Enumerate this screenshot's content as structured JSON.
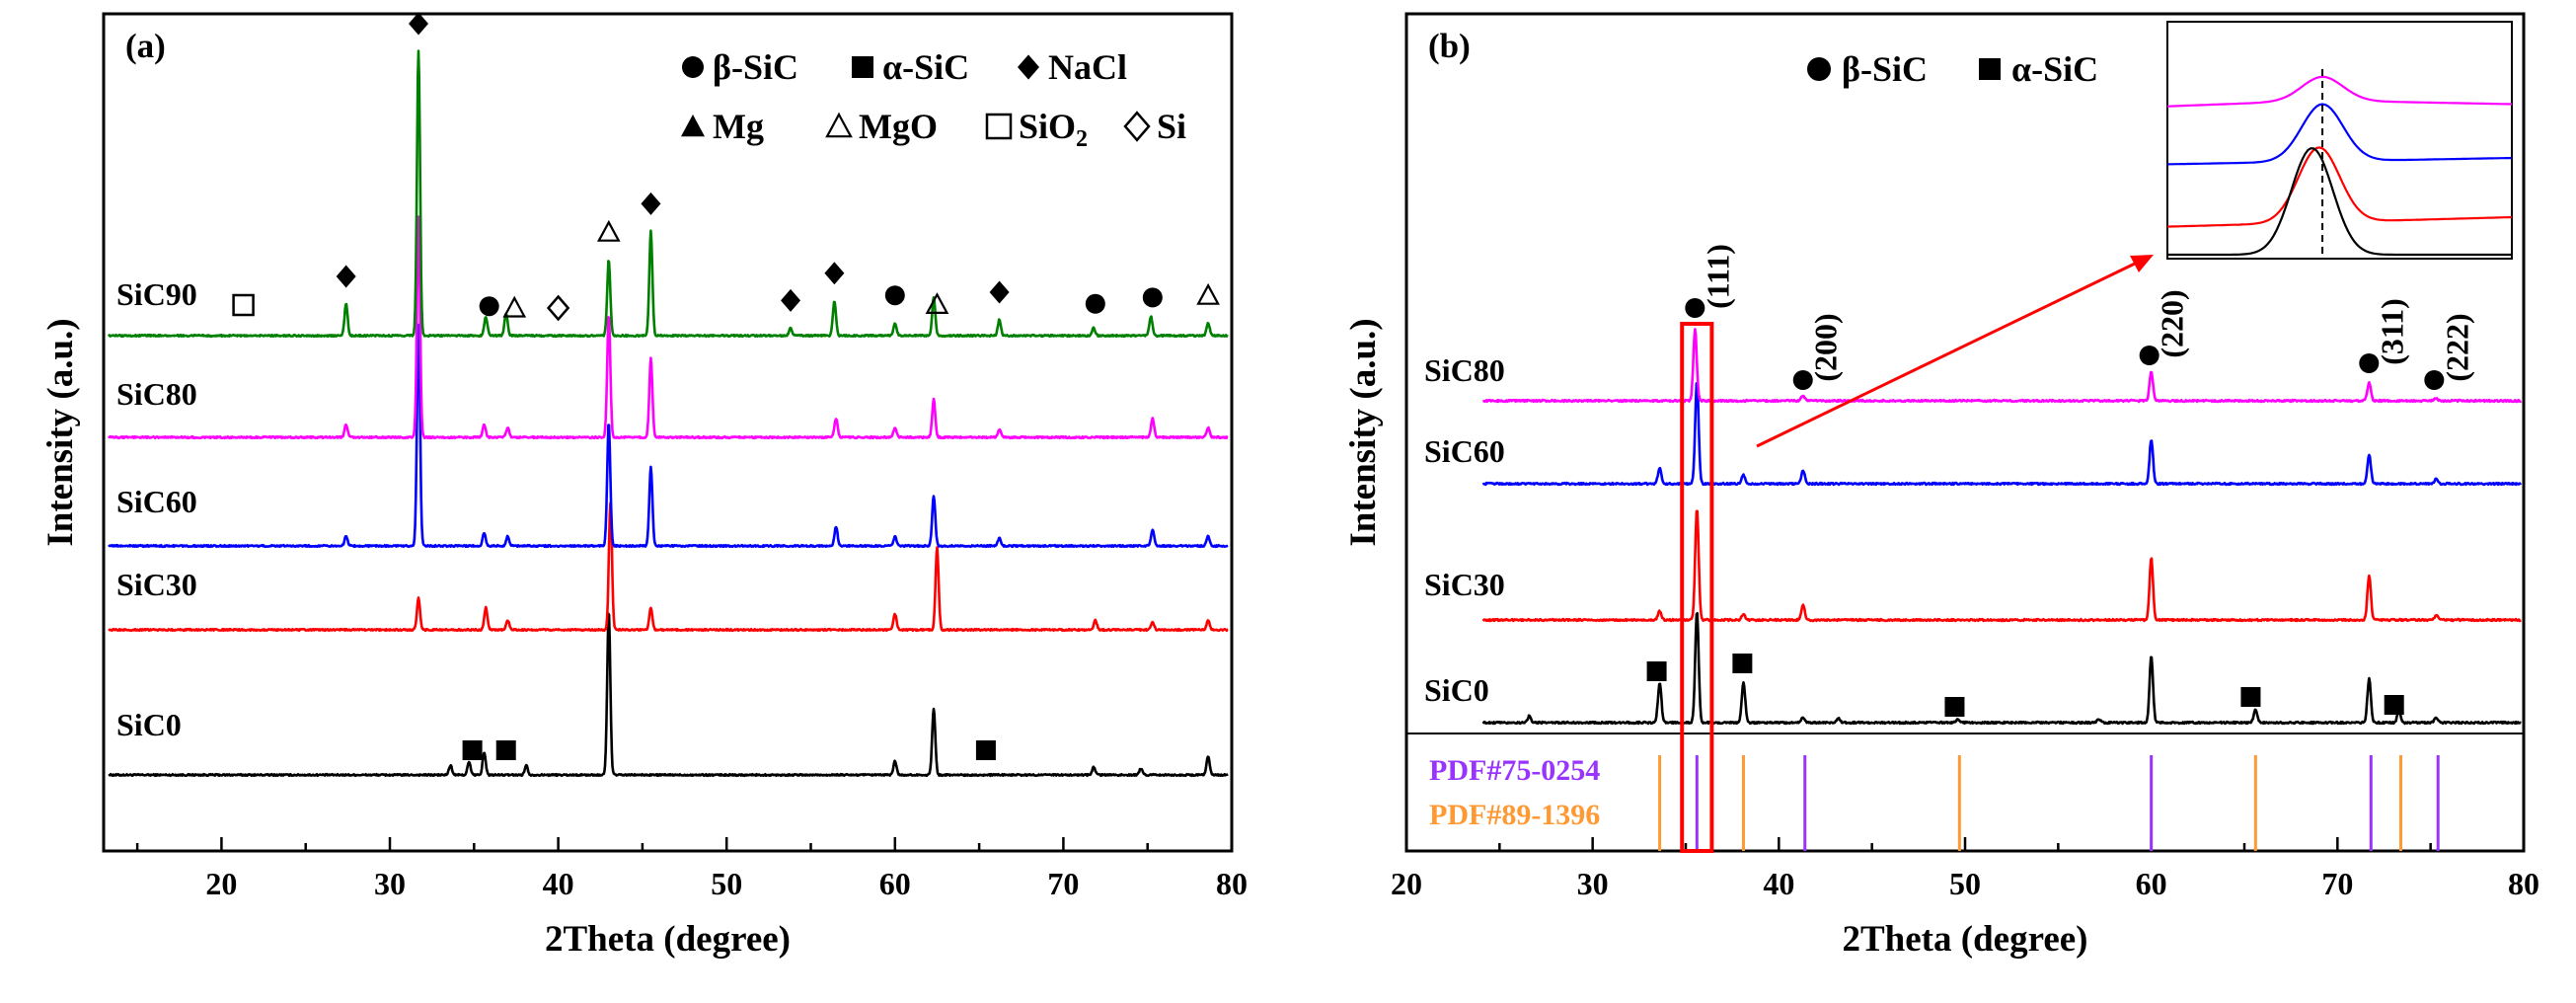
{
  "figure_title": "",
  "colors": {
    "SiC0": "#000000",
    "SiC30": "#ff0000",
    "SiC60": "#0000ff",
    "SiC80": "#ff00ff",
    "SiC90": "#008000",
    "pdf_beta": "#9933ff",
    "pdf_alpha": "#ff9933",
    "highlight": "#ff0000"
  },
  "chart_data": [
    {
      "type": "line",
      "panel_label": "(a)",
      "xlabel": "2Theta (degree)",
      "ylabel": "Intensity (a.u.)",
      "xlim": [
        13,
        80
      ],
      "xticks": [
        20,
        30,
        40,
        50,
        60,
        70,
        80
      ],
      "legend": {
        "placement": "top-right",
        "row1": [
          {
            "symbol": "filled-circle",
            "text": "β-SiC"
          },
          {
            "symbol": "filled-square",
            "text": "α-SiC"
          },
          {
            "symbol": "filled-diamond",
            "text": "NaCl"
          }
        ],
        "row2": [
          {
            "symbol": "filled-triangle",
            "text": "Mg"
          },
          {
            "symbol": "open-triangle",
            "text": "MgO"
          },
          {
            "symbol": "open-square",
            "text": "SiO2"
          },
          {
            "symbol": "open-diamond",
            "text": "Si"
          }
        ]
      },
      "series": [
        {
          "name": "SiC0",
          "peaks": [
            [
              33.6,
              0.15
            ],
            [
              34.7,
              0.2
            ],
            [
              35.6,
              0.35
            ],
            [
              38.1,
              0.15
            ],
            [
              43.0,
              2.6
            ],
            [
              60.0,
              0.22
            ],
            [
              62.3,
              1.05
            ],
            [
              71.8,
              0.12
            ],
            [
              74.6,
              0.1
            ],
            [
              78.6,
              0.3
            ]
          ]
        },
        {
          "name": "SiC30",
          "peaks": [
            [
              31.7,
              0.5
            ],
            [
              35.7,
              0.35
            ],
            [
              37.0,
              0.15
            ],
            [
              43.1,
              2.0
            ],
            [
              45.5,
              0.35
            ],
            [
              60.0,
              0.25
            ],
            [
              62.5,
              1.3
            ],
            [
              71.9,
              0.15
            ],
            [
              75.3,
              0.12
            ],
            [
              78.6,
              0.15
            ]
          ]
        },
        {
          "name": "SiC60",
          "peaks": [
            [
              27.4,
              0.15
            ],
            [
              31.7,
              3.5
            ],
            [
              35.6,
              0.2
            ],
            [
              37.0,
              0.15
            ],
            [
              43.0,
              1.95
            ],
            [
              45.5,
              1.25
            ],
            [
              56.5,
              0.3
            ],
            [
              60.0,
              0.15
            ],
            [
              62.3,
              0.8
            ],
            [
              66.2,
              0.12
            ],
            [
              75.3,
              0.25
            ],
            [
              78.6,
              0.15
            ]
          ]
        },
        {
          "name": "SiC80",
          "peaks": [
            [
              27.4,
              0.2
            ],
            [
              31.7,
              3.5
            ],
            [
              35.6,
              0.2
            ],
            [
              37.0,
              0.15
            ],
            [
              43.0,
              1.95
            ],
            [
              45.5,
              1.25
            ],
            [
              56.5,
              0.3
            ],
            [
              60.0,
              0.15
            ],
            [
              62.3,
              0.6
            ],
            [
              66.2,
              0.12
            ],
            [
              75.3,
              0.3
            ],
            [
              78.6,
              0.15
            ]
          ]
        },
        {
          "name": "SiC90",
          "peaks": [
            [
              27.4,
              0.5
            ],
            [
              31.7,
              4.5
            ],
            [
              35.7,
              0.3
            ],
            [
              36.9,
              0.35
            ],
            [
              43.0,
              1.2
            ],
            [
              45.5,
              1.65
            ],
            [
              53.8,
              0.12
            ],
            [
              56.4,
              0.55
            ],
            [
              60.0,
              0.2
            ],
            [
              62.3,
              0.6
            ],
            [
              66.2,
              0.25
            ],
            [
              71.8,
              0.12
            ],
            [
              75.2,
              0.3
            ],
            [
              78.6,
              0.2
            ]
          ]
        }
      ],
      "series_labels": [
        "SiC0",
        "SiC30",
        "SiC60",
        "SiC80",
        "SiC90"
      ],
      "markers": [
        {
          "series": "SiC0",
          "symbol": "filled-square",
          "x": [
            34.9,
            36.9,
            65.4
          ]
        },
        {
          "series": "SiC90",
          "symbol": "filled-diamond",
          "x": [
            27.4,
            31.7,
            45.5,
            53.8,
            56.4,
            66.2
          ]
        },
        {
          "series": "SiC90",
          "symbol": "filled-circle",
          "x": [
            35.9,
            60.0,
            71.9,
            75.3
          ]
        },
        {
          "series": "SiC90",
          "symbol": "open-triangle",
          "x": [
            37.4,
            43.0,
            62.5,
            78.6
          ]
        },
        {
          "series": "SiC90",
          "symbol": "open-diamond",
          "x": [
            40.0
          ]
        },
        {
          "series": "SiC90",
          "symbol": "open-square",
          "x": [
            21.3
          ]
        }
      ]
    },
    {
      "type": "line",
      "panel_label": "(b)",
      "xlabel": "2Theta (degree)",
      "ylabel": "Intensity (a.u.)",
      "xlim": [
        20,
        80
      ],
      "xticks": [
        20,
        30,
        40,
        50,
        60,
        70,
        80
      ],
      "legend": {
        "placement": "top",
        "row1": [
          {
            "symbol": "filled-circle",
            "text": "β-SiC"
          },
          {
            "symbol": "filled-square",
            "text": "α-SiC"
          }
        ]
      },
      "series": [
        {
          "name": "SiC0",
          "peaks": [
            [
              26.6,
              0.15
            ],
            [
              33.6,
              0.9
            ],
            [
              35.6,
              2.5
            ],
            [
              38.1,
              0.9
            ],
            [
              41.3,
              0.12
            ],
            [
              43.2,
              0.1
            ],
            [
              49.6,
              0.08
            ],
            [
              57.2,
              0.08
            ],
            [
              60.0,
              1.5
            ],
            [
              65.6,
              0.3
            ],
            [
              71.7,
              1.0
            ],
            [
              73.3,
              0.25
            ],
            [
              75.3,
              0.12
            ]
          ]
        },
        {
          "name": "SiC30",
          "peaks": [
            [
              33.6,
              0.2
            ],
            [
              35.6,
              2.5
            ],
            [
              38.1,
              0.12
            ],
            [
              41.3,
              0.35
            ],
            [
              60.0,
              1.4
            ],
            [
              71.7,
              1.0
            ],
            [
              75.3,
              0.1
            ]
          ]
        },
        {
          "name": "SiC60",
          "peaks": [
            [
              33.6,
              0.35
            ],
            [
              35.6,
              2.3
            ],
            [
              38.1,
              0.2
            ],
            [
              41.3,
              0.3
            ],
            [
              60.0,
              1.0
            ],
            [
              71.7,
              0.65
            ],
            [
              75.3,
              0.1
            ]
          ]
        },
        {
          "name": "SiC80",
          "peaks": [
            [
              35.5,
              1.6
            ],
            [
              41.3,
              0.12
            ],
            [
              60.0,
              0.65
            ],
            [
              71.7,
              0.42
            ],
            [
              75.3,
              0.06
            ]
          ]
        }
      ],
      "series_labels": [
        "SiC0",
        "SiC30",
        "SiC60",
        "SiC80"
      ],
      "hkl": [
        {
          "x": 35.6,
          "label": "(111)"
        },
        {
          "x": 41.4,
          "label": "(200)"
        },
        {
          "x": 60.0,
          "label": "(220)"
        },
        {
          "x": 71.8,
          "label": "(311)"
        },
        {
          "x": 75.3,
          "label": "(222)"
        }
      ],
      "alpha_markers_x": [
        33.6,
        38.2,
        49.6,
        65.5,
        73.2
      ],
      "reference_patterns": [
        {
          "label": "PDF#75-0254",
          "lines": [
            35.6,
            41.4,
            60.0,
            71.8,
            75.4
          ]
        },
        {
          "label": "PDF#89-1396",
          "lines": [
            33.6,
            38.1,
            49.7,
            65.6,
            73.4
          ]
        }
      ],
      "highlight_box_x": [
        34.8,
        36.4
      ],
      "inset": {
        "series_order": [
          "SiC80",
          "SiC60",
          "SiC30",
          "SiC0"
        ],
        "dashed_marker": true
      }
    }
  ]
}
